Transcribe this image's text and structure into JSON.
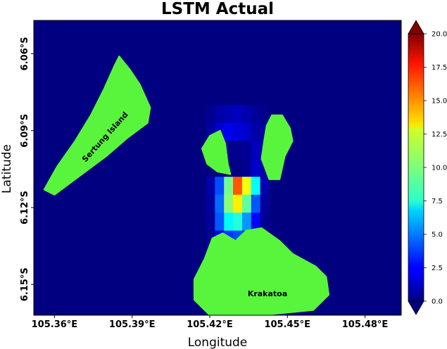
{
  "chart_data": {
    "type": "heatmap",
    "title": "LSTM Actual",
    "xlabel": "Longitude",
    "ylabel": "Latitude",
    "x_ticks": [
      "105.36°E",
      "105.39°E",
      "105.42°E",
      "105.45°E",
      "105.48°E"
    ],
    "x_tick_values": [
      105.36,
      105.39,
      105.42,
      105.45,
      105.48
    ],
    "y_ticks": [
      "6.06°S",
      "6.09°S",
      "6.12°S",
      "6.15°S"
    ],
    "y_tick_values": [
      -6.06,
      -6.09,
      -6.12,
      -6.15
    ],
    "xlim": [
      105.352,
      105.494
    ],
    "ylim": [
      -6.162,
      -6.047
    ],
    "colormap": "jet",
    "colorbar": {
      "min": 0,
      "max": 20,
      "extend": "both",
      "ticks": [
        "0.0",
        "2.5",
        "5.0",
        "7.5",
        "10.0",
        "12.5",
        "15.0",
        "17.5",
        "20.0"
      ]
    },
    "grid_x0": 105.4185,
    "grid_y0": -6.08,
    "cell_lon": 0.0035,
    "cell_lat": 0.007,
    "grid": [
      [
        0.3,
        0.8,
        1.0,
        1.2,
        0.9,
        0.5,
        0.2,
        0.0
      ],
      [
        0.6,
        1.5,
        2.2,
        1.8,
        1.5,
        0.8,
        0.6,
        0.1
      ],
      [
        0.0,
        0.2,
        0.3,
        0.3,
        0.4,
        1.2,
        0.8,
        0.1
      ],
      [
        0.0,
        0.0,
        0.0,
        0.1,
        0.3,
        1.5,
        0.8,
        0.1
      ],
      [
        0.8,
        4.0,
        9.8,
        15.8,
        12.2,
        7.5,
        0.9,
        0.0
      ],
      [
        0.6,
        4.6,
        10.2,
        12.8,
        9.4,
        4.2,
        0.6,
        0.0
      ],
      [
        0.5,
        4.2,
        7.4,
        8.2,
        5.5,
        2.6,
        0.4,
        0.0
      ],
      [
        0.4,
        2.0,
        3.5,
        4.0,
        2.6,
        0.9,
        0.2,
        0.0
      ],
      [
        0.2,
        0.4,
        0.7,
        0.8,
        0.5,
        0.3,
        0.1,
        0.0
      ]
    ],
    "colors": {
      "background": "#000080",
      "land": "#59f53c"
    },
    "land": [
      {
        "name": "Sertung Island",
        "outline": [
          [
            105.385,
            -6.061
          ],
          [
            105.389,
            -6.066
          ],
          [
            105.393,
            -6.072
          ],
          [
            105.397,
            -6.081
          ],
          [
            105.396,
            -6.087
          ],
          [
            105.388,
            -6.093
          ],
          [
            105.38,
            -6.1
          ],
          [
            105.372,
            -6.106
          ],
          [
            105.364,
            -6.112
          ],
          [
            105.36,
            -6.115
          ],
          [
            105.356,
            -6.113
          ],
          [
            105.361,
            -6.104
          ],
          [
            105.368,
            -6.094
          ],
          [
            105.374,
            -6.084
          ],
          [
            105.379,
            -6.074
          ],
          [
            105.383,
            -6.065
          ]
        ]
      },
      {
        "name": "",
        "outline": [
          [
            105.42,
            -6.092
          ],
          [
            105.424,
            -6.09
          ],
          [
            105.426,
            -6.095
          ],
          [
            105.427,
            -6.103
          ],
          [
            105.428,
            -6.107
          ],
          [
            105.423,
            -6.106
          ],
          [
            105.419,
            -6.103
          ],
          [
            105.417,
            -6.097
          ]
        ]
      },
      {
        "name": "",
        "outline": [
          [
            105.444,
            -6.084
          ],
          [
            105.448,
            -6.084
          ],
          [
            105.451,
            -6.089
          ],
          [
            105.452,
            -6.094
          ],
          [
            105.449,
            -6.1
          ],
          [
            105.447,
            -6.109
          ],
          [
            105.443,
            -6.109
          ],
          [
            105.44,
            -6.101
          ],
          [
            105.441,
            -6.094
          ],
          [
            105.442,
            -6.088
          ]
        ]
      },
      {
        "name": "Krakatoa",
        "outline": [
          [
            105.418,
            -6.14
          ],
          [
            105.421,
            -6.132
          ],
          [
            105.425,
            -6.13
          ],
          [
            105.43,
            -6.133
          ],
          [
            105.434,
            -6.129
          ],
          [
            105.44,
            -6.128
          ],
          [
            105.447,
            -6.133
          ],
          [
            105.452,
            -6.138
          ],
          [
            105.461,
            -6.143
          ],
          [
            105.465,
            -6.147
          ],
          [
            105.466,
            -6.154
          ],
          [
            105.46,
            -6.16
          ],
          [
            105.44,
            -6.162
          ],
          [
            105.42,
            -6.162
          ],
          [
            105.414,
            -6.156
          ],
          [
            105.414,
            -6.148
          ]
        ]
      }
    ]
  }
}
